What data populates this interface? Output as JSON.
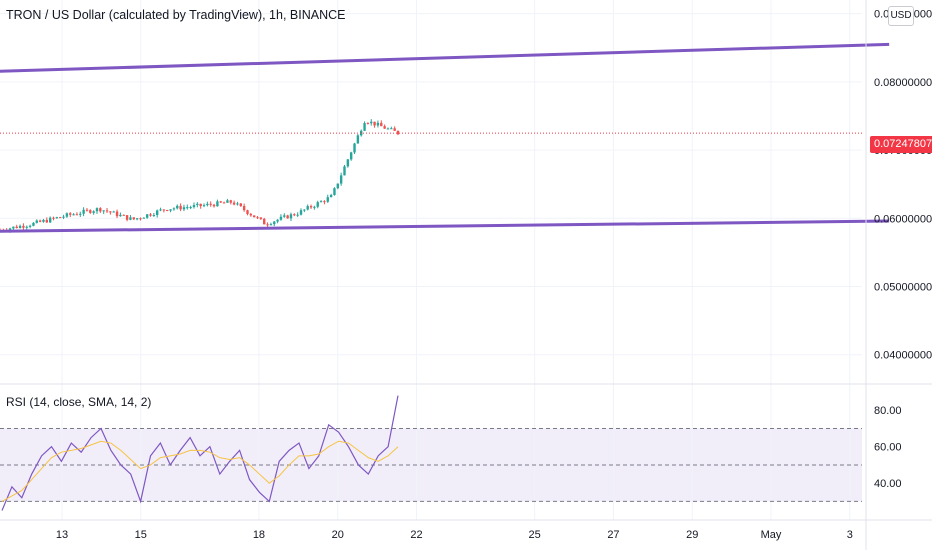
{
  "header": {
    "title": "TRON / US Dollar (calculated by TradingView), 1h, BINANCE",
    "currency_button": "USD"
  },
  "colors": {
    "up": "#26a69a",
    "down": "#ef5350",
    "trendline": "#7e57c2",
    "rsi_line": "#7e57c2",
    "rsi_sma": "#f6c344",
    "last_price": "#f23645",
    "rsi_band": "#ede7f6"
  },
  "chart_data": [
    {
      "type": "line",
      "name": "price",
      "x_ticks": [
        "13",
        "15",
        "18",
        "20",
        "22",
        "25",
        "27",
        "29",
        "May",
        "3"
      ],
      "y_ticks": [
        "0.04000000",
        "0.05000000",
        "0.06000000",
        "0.07000000",
        "0.08000000",
        "0.09000000"
      ],
      "ylim": [
        0.036,
        0.092
      ],
      "last_price": 0.07247807,
      "last_price_label": "0.07247807",
      "series": [
        {
          "x": [
            "Apr 11",
            "Apr 12",
            "Apr 13",
            "Apr 14",
            "Apr 15",
            "Apr 16",
            "Apr 17",
            "Apr 18",
            "Apr 19",
            "Apr 20",
            "Apr 21",
            "Apr 21 10:00",
            "Apr 21 12:00"
          ],
          "values": [
            0.0583,
            0.0592,
            0.0604,
            0.0614,
            0.0598,
            0.0614,
            0.0618,
            0.0624,
            0.0592,
            0.0608,
            0.0632,
            0.0744,
            0.0725
          ]
        }
      ],
      "trendlines": [
        {
          "from": [
            "Apr 10",
            0.0813
          ],
          "to": [
            "May 4",
            0.0855
          ]
        },
        {
          "from": [
            "Apr 10",
            0.058
          ],
          "to": [
            "May 4",
            0.0596
          ]
        }
      ]
    },
    {
      "type": "line",
      "name": "RSI",
      "label": "RSI (14, close, SMA, 14, 2)",
      "y_ticks": [
        "40.00",
        "60.00",
        "80.00"
      ],
      "ylim": [
        22,
        90
      ],
      "levels": [
        30,
        50,
        70
      ],
      "series": [
        {
          "name": "RSI",
          "values": [
            25,
            38,
            32,
            45,
            55,
            60,
            52,
            62,
            57,
            65,
            70,
            58,
            50,
            45,
            30,
            55,
            62,
            50,
            58,
            65,
            55,
            60,
            45,
            52,
            58,
            42,
            35,
            30,
            52,
            58,
            62,
            48,
            55,
            72,
            68,
            60,
            50,
            45,
            55,
            60,
            88
          ]
        },
        {
          "name": "SMA",
          "values": [
            30,
            33,
            36,
            42,
            48,
            54,
            57,
            58,
            59,
            61,
            63,
            62,
            58,
            53,
            48,
            50,
            54,
            55,
            56,
            58,
            58,
            57,
            54,
            53,
            54,
            50,
            45,
            40,
            44,
            50,
            55,
            55,
            56,
            60,
            63,
            62,
            58,
            54,
            52,
            55,
            60
          ]
        }
      ]
    }
  ]
}
